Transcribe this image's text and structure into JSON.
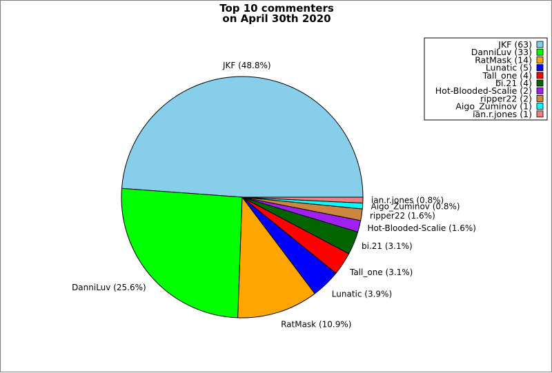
{
  "chart_data": {
    "type": "pie",
    "title": "Top 10 commenters",
    "subtitle": "on April 30th 2020",
    "legend_position": "top-right",
    "slices": [
      {
        "name": "JKF",
        "count": 63,
        "percent": 48.8,
        "color": "#87ceeb",
        "label": "JKF (48.8%)",
        "legend": "JKF (63)"
      },
      {
        "name": "DanniLuv",
        "count": 33,
        "percent": 25.6,
        "color": "#00ff00",
        "label": "DanniLuv (25.6%)",
        "legend": "DanniLuv (33)"
      },
      {
        "name": "RatMask",
        "count": 14,
        "percent": 10.9,
        "color": "#ffa500",
        "label": "RatMask (10.9%)",
        "legend": "RatMask (14)"
      },
      {
        "name": "Lunatic",
        "count": 5,
        "percent": 3.9,
        "color": "#0000ff",
        "label": "Lunatic (3.9%)",
        "legend": "Lunatic (5)"
      },
      {
        "name": "Tall_one",
        "count": 4,
        "percent": 3.1,
        "color": "#ff0000",
        "label": "Tall_one (3.1%)",
        "legend": "Tall_one (4)"
      },
      {
        "name": "bi.21",
        "count": 4,
        "percent": 3.1,
        "color": "#006400",
        "label": "bi.21 (3.1%)",
        "legend": "bi.21 (4)"
      },
      {
        "name": "Hot-Blooded-Scalie",
        "count": 2,
        "percent": 1.6,
        "color": "#a020f0",
        "label": "Hot-Blooded-Scalie (1.6%)",
        "legend": "Hot-Blooded-Scalie (2)"
      },
      {
        "name": "ripper22",
        "count": 2,
        "percent": 1.6,
        "color": "#cd853f",
        "label": "ripper22 (1.6%)",
        "legend": "ripper22 (2)"
      },
      {
        "name": "Aigo_Zuminov",
        "count": 1,
        "percent": 0.8,
        "color": "#00ffff",
        "label": "Aigo_Zuminov (0.8%)",
        "legend": "Aigo_Zuminov (1)"
      },
      {
        "name": "ian.r.jones",
        "count": 1,
        "percent": 0.8,
        "color": "#f08080",
        "label": "ian.r.jones (0.8%)",
        "legend": "ian.r.jones (1)"
      }
    ]
  }
}
